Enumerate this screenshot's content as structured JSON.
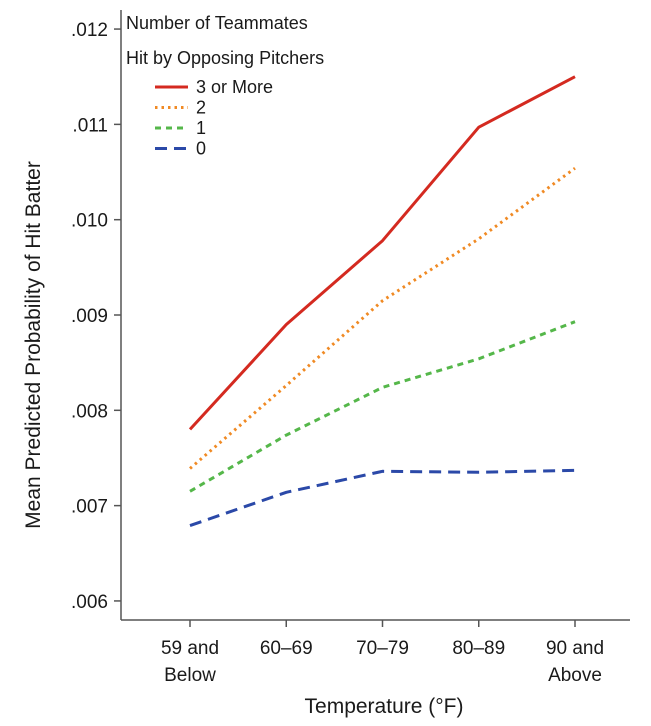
{
  "chart_data": {
    "type": "line",
    "title": "",
    "xlabel": "Temperature (°F)",
    "ylabel": "Mean Predicted Probability of Hit Batter",
    "categories": [
      [
        "59 and",
        "Below"
      ],
      [
        "60–69"
      ],
      [
        "70–79"
      ],
      [
        "80–89"
      ],
      [
        "90 and",
        "Above"
      ]
    ],
    "ylim": [
      0.0058,
      0.0122
    ],
    "yticks": [
      0.006,
      0.007,
      0.008,
      0.009,
      0.01,
      0.011,
      0.012
    ],
    "ytick_labels": [
      ".006",
      ".007",
      ".008",
      ".009",
      ".010",
      ".011",
      ".012"
    ],
    "grid": false,
    "legend": {
      "position": "top-left",
      "title_lines": [
        "Number of Teammates",
        "Hit by Opposing Pitchers"
      ]
    },
    "series": [
      {
        "name": "3 or More",
        "values": [
          0.0078,
          0.0089,
          0.00978,
          0.01097,
          0.0115
        ],
        "color": "#d42a20",
        "dash": "solid"
      },
      {
        "name": "2",
        "values": [
          0.00739,
          0.00826,
          0.00915,
          0.0098,
          0.01054
        ],
        "color": "#f08a24",
        "dash": "dotted"
      },
      {
        "name": "1",
        "values": [
          0.00715,
          0.00774,
          0.00824,
          0.00854,
          0.00893
        ],
        "color": "#55b74a",
        "dash": "dashed-short"
      },
      {
        "name": "0",
        "values": [
          0.00679,
          0.00714,
          0.00736,
          0.00735,
          0.00737
        ],
        "color": "#2b49a8",
        "dash": "dashed-long"
      }
    ]
  }
}
